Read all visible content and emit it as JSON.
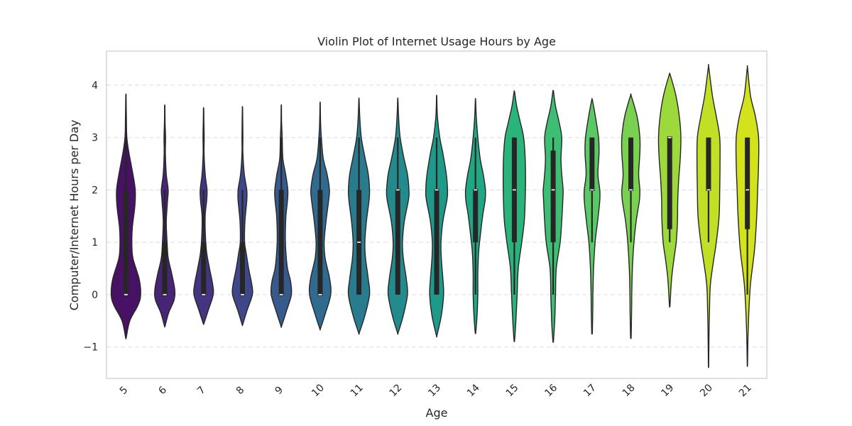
{
  "chart_data": {
    "type": "violin",
    "title": "Violin Plot of Internet Usage Hours by Age",
    "xlabel": "Age",
    "ylabel": "Computer/Internet Hours per Day",
    "ylim": [
      -1.6,
      4.65
    ],
    "yticks": [
      -1,
      0,
      1,
      2,
      3,
      4
    ],
    "grid": true,
    "palette": "viridis",
    "categories": [
      "5",
      "6",
      "7",
      "8",
      "9",
      "10",
      "11",
      "12",
      "13",
      "14",
      "15",
      "16",
      "17",
      "18",
      "19",
      "20",
      "21"
    ],
    "colors": [
      "#471164",
      "#482475",
      "#453581",
      "#3e4889",
      "#375a8c",
      "#306a8e",
      "#297b8e",
      "#238a8d",
      "#1f998a",
      "#20a784",
      "#2ab47c",
      "#3dbe72",
      "#5ac864",
      "#7ad151",
      "#9dd93b",
      "#c0df25",
      "#d2e21b"
    ],
    "stats": [
      {
        "min": 0,
        "q1": 0,
        "median": 0,
        "q3": 2,
        "max": 3.0,
        "kde_min": -0.82,
        "kde_max": 3.8
      },
      {
        "min": 0,
        "q1": 0,
        "median": 0,
        "q3": 1,
        "max": 2.0,
        "kde_min": -0.6,
        "kde_max": 3.6
      },
      {
        "min": 0,
        "q1": 0,
        "median": 0,
        "q3": 1,
        "max": 2.0,
        "kde_min": -0.55,
        "kde_max": 3.55
      },
      {
        "min": 0,
        "q1": 0,
        "median": 0,
        "q3": 1,
        "max": 2.0,
        "kde_min": -0.57,
        "kde_max": 3.57
      },
      {
        "min": 0,
        "q1": 0,
        "median": 0,
        "q3": 2,
        "max": 3.0,
        "kde_min": -0.6,
        "kde_max": 3.6
      },
      {
        "min": 0,
        "q1": 0,
        "median": 0,
        "q3": 2,
        "max": 3.0,
        "kde_min": -0.65,
        "kde_max": 3.65
      },
      {
        "min": 0,
        "q1": 0,
        "median": 1,
        "q3": 2,
        "max": 3.0,
        "kde_min": -0.73,
        "kde_max": 3.73
      },
      {
        "min": 0,
        "q1": 0,
        "median": 2,
        "q3": 2,
        "max": 3.0,
        "kde_min": -0.73,
        "kde_max": 3.73
      },
      {
        "min": 0,
        "q1": 0,
        "median": 2,
        "q3": 2,
        "max": 3.0,
        "kde_min": -0.78,
        "kde_max": 3.78
      },
      {
        "min": 0,
        "q1": 1,
        "median": 2,
        "q3": 2,
        "max": 3.0,
        "kde_min": -0.72,
        "kde_max": 3.72
      },
      {
        "min": 0,
        "q1": 1,
        "median": 2,
        "q3": 3,
        "max": 3.0,
        "kde_min": -0.87,
        "kde_max": 3.87
      },
      {
        "min": 0,
        "q1": 1,
        "median": 2,
        "q3": 2.75,
        "max": 3.0,
        "kde_min": -0.88,
        "kde_max": 3.88
      },
      {
        "min": 1,
        "q1": 2,
        "median": 2,
        "q3": 3,
        "max": 3.0,
        "kde_min": -0.72,
        "kde_max": 3.72
      },
      {
        "min": 1,
        "q1": 2,
        "median": 2,
        "q3": 3,
        "max": 3.0,
        "kde_min": -0.8,
        "kde_max": 3.8
      },
      {
        "min": 1,
        "q1": 1.25,
        "median": 3,
        "q3": 3,
        "max": 3.0,
        "kde_min": -0.2,
        "kde_max": 4.2
      },
      {
        "min": 1,
        "q1": 2,
        "median": 2,
        "q3": 3,
        "max": 3.0,
        "kde_min": -1.35,
        "kde_max": 4.35
      },
      {
        "min": 0,
        "q1": 1.25,
        "median": 2,
        "q3": 3,
        "max": 3.0,
        "kde_min": -1.33,
        "kde_max": 4.33
      }
    ],
    "densities": [
      [
        [
          -0.82,
          0.02
        ],
        [
          -0.5,
          0.25
        ],
        [
          -0.2,
          0.78
        ],
        [
          0.0,
          0.95
        ],
        [
          0.3,
          0.85
        ],
        [
          0.7,
          0.45
        ],
        [
          1.0,
          0.38
        ],
        [
          1.3,
          0.42
        ],
        [
          1.7,
          0.58
        ],
        [
          2.0,
          0.6
        ],
        [
          2.3,
          0.45
        ],
        [
          2.7,
          0.2
        ],
        [
          3.0,
          0.06
        ],
        [
          3.4,
          0.03
        ],
        [
          3.8,
          0.01
        ]
      ],
      [
        [
          -0.6,
          0.02
        ],
        [
          -0.35,
          0.25
        ],
        [
          -0.1,
          0.6
        ],
        [
          0.1,
          0.64
        ],
        [
          0.4,
          0.45
        ],
        [
          0.7,
          0.22
        ],
        [
          1.0,
          0.15
        ],
        [
          1.4,
          0.1
        ],
        [
          1.8,
          0.18
        ],
        [
          2.0,
          0.22
        ],
        [
          2.3,
          0.1
        ],
        [
          2.7,
          0.04
        ],
        [
          3.0,
          0.05
        ],
        [
          3.3,
          0.02
        ],
        [
          3.6,
          0.01
        ]
      ],
      [
        [
          -0.55,
          0.02
        ],
        [
          -0.3,
          0.3
        ],
        [
          0.0,
          0.62
        ],
        [
          0.2,
          0.58
        ],
        [
          0.5,
          0.38
        ],
        [
          0.8,
          0.2
        ],
        [
          1.1,
          0.12
        ],
        [
          1.5,
          0.1
        ],
        [
          1.8,
          0.2
        ],
        [
          2.0,
          0.22
        ],
        [
          2.3,
          0.1
        ],
        [
          2.7,
          0.03
        ],
        [
          3.0,
          0.04
        ],
        [
          3.3,
          0.02
        ],
        [
          3.55,
          0.01
        ]
      ],
      [
        [
          -0.57,
          0.02
        ],
        [
          -0.3,
          0.3
        ],
        [
          0.0,
          0.64
        ],
        [
          0.2,
          0.6
        ],
        [
          0.5,
          0.4
        ],
        [
          0.8,
          0.24
        ],
        [
          1.0,
          0.14
        ],
        [
          1.4,
          0.16
        ],
        [
          1.8,
          0.28
        ],
        [
          2.0,
          0.28
        ],
        [
          2.3,
          0.12
        ],
        [
          2.7,
          0.03
        ],
        [
          3.0,
          0.03
        ],
        [
          3.3,
          0.02
        ],
        [
          3.57,
          0.01
        ]
      ],
      [
        [
          -0.6,
          0.02
        ],
        [
          -0.3,
          0.35
        ],
        [
          0.0,
          0.65
        ],
        [
          0.25,
          0.6
        ],
        [
          0.5,
          0.4
        ],
        [
          0.8,
          0.3
        ],
        [
          1.1,
          0.26
        ],
        [
          1.5,
          0.3
        ],
        [
          1.8,
          0.4
        ],
        [
          2.0,
          0.42
        ],
        [
          2.3,
          0.28
        ],
        [
          2.6,
          0.1
        ],
        [
          3.0,
          0.06
        ],
        [
          3.3,
          0.02
        ],
        [
          3.6,
          0.01
        ]
      ],
      [
        [
          -0.65,
          0.02
        ],
        [
          -0.35,
          0.35
        ],
        [
          0.0,
          0.68
        ],
        [
          0.3,
          0.62
        ],
        [
          0.7,
          0.32
        ],
        [
          1.0,
          0.26
        ],
        [
          1.4,
          0.38
        ],
        [
          1.8,
          0.55
        ],
        [
          2.0,
          0.6
        ],
        [
          2.3,
          0.45
        ],
        [
          2.6,
          0.2
        ],
        [
          3.0,
          0.08
        ],
        [
          3.3,
          0.03
        ],
        [
          3.65,
          0.01
        ]
      ],
      [
        [
          -0.73,
          0.02
        ],
        [
          -0.4,
          0.38
        ],
        [
          0.0,
          0.68
        ],
        [
          0.3,
          0.6
        ],
        [
          0.7,
          0.42
        ],
        [
          1.0,
          0.38
        ],
        [
          1.4,
          0.48
        ],
        [
          1.8,
          0.65
        ],
        [
          2.0,
          0.68
        ],
        [
          2.3,
          0.6
        ],
        [
          2.6,
          0.4
        ],
        [
          3.0,
          0.15
        ],
        [
          3.4,
          0.05
        ],
        [
          3.73,
          0.01
        ]
      ],
      [
        [
          -0.73,
          0.02
        ],
        [
          -0.4,
          0.35
        ],
        [
          0.0,
          0.62
        ],
        [
          0.3,
          0.55
        ],
        [
          0.7,
          0.35
        ],
        [
          1.0,
          0.3
        ],
        [
          1.4,
          0.42
        ],
        [
          1.8,
          0.68
        ],
        [
          2.0,
          0.72
        ],
        [
          2.3,
          0.62
        ],
        [
          2.6,
          0.4
        ],
        [
          3.0,
          0.15
        ],
        [
          3.4,
          0.05
        ],
        [
          3.73,
          0.01
        ]
      ],
      [
        [
          -0.78,
          0.02
        ],
        [
          -0.4,
          0.3
        ],
        [
          0.0,
          0.45
        ],
        [
          0.3,
          0.4
        ],
        [
          0.7,
          0.3
        ],
        [
          1.0,
          0.28
        ],
        [
          1.4,
          0.4
        ],
        [
          1.8,
          0.66
        ],
        [
          2.0,
          0.7
        ],
        [
          2.3,
          0.62
        ],
        [
          2.7,
          0.4
        ],
        [
          3.0,
          0.2
        ],
        [
          3.4,
          0.05
        ],
        [
          3.78,
          0.01
        ]
      ],
      [
        [
          -0.72,
          0.02
        ],
        [
          -0.4,
          0.1
        ],
        [
          0.0,
          0.15
        ],
        [
          0.4,
          0.15
        ],
        [
          0.8,
          0.2
        ],
        [
          1.1,
          0.3
        ],
        [
          1.5,
          0.46
        ],
        [
          1.8,
          0.62
        ],
        [
          2.0,
          0.64
        ],
        [
          2.3,
          0.5
        ],
        [
          2.6,
          0.3
        ],
        [
          3.0,
          0.15
        ],
        [
          3.4,
          0.05
        ],
        [
          3.72,
          0.01
        ]
      ],
      [
        [
          -0.87,
          0.02
        ],
        [
          -0.5,
          0.1
        ],
        [
          0.0,
          0.18
        ],
        [
          0.5,
          0.25
        ],
        [
          1.0,
          0.48
        ],
        [
          1.4,
          0.64
        ],
        [
          1.8,
          0.7
        ],
        [
          2.2,
          0.72
        ],
        [
          2.6,
          0.7
        ],
        [
          3.0,
          0.6
        ],
        [
          3.3,
          0.38
        ],
        [
          3.6,
          0.15
        ],
        [
          3.87,
          0.02
        ]
      ],
      [
        [
          -0.88,
          0.02
        ],
        [
          -0.5,
          0.1
        ],
        [
          0.0,
          0.15
        ],
        [
          0.5,
          0.2
        ],
        [
          1.0,
          0.45
        ],
        [
          1.4,
          0.55
        ],
        [
          1.8,
          0.62
        ],
        [
          2.0,
          0.64
        ],
        [
          2.3,
          0.55
        ],
        [
          2.6,
          0.5
        ],
        [
          3.0,
          0.55
        ],
        [
          3.3,
          0.38
        ],
        [
          3.6,
          0.15
        ],
        [
          3.88,
          0.02
        ]
      ],
      [
        [
          -0.72,
          0.02
        ],
        [
          -0.3,
          0.05
        ],
        [
          0.0,
          0.06
        ],
        [
          0.5,
          0.1
        ],
        [
          1.0,
          0.2
        ],
        [
          1.4,
          0.36
        ],
        [
          1.8,
          0.5
        ],
        [
          2.0,
          0.5
        ],
        [
          2.3,
          0.38
        ],
        [
          2.7,
          0.45
        ],
        [
          3.0,
          0.42
        ],
        [
          3.4,
          0.22
        ],
        [
          3.72,
          0.02
        ]
      ],
      [
        [
          -0.8,
          0.02
        ],
        [
          -0.3,
          0.05
        ],
        [
          0.0,
          0.06
        ],
        [
          0.5,
          0.1
        ],
        [
          1.0,
          0.2
        ],
        [
          1.4,
          0.34
        ],
        [
          1.8,
          0.55
        ],
        [
          2.0,
          0.58
        ],
        [
          2.3,
          0.5
        ],
        [
          2.7,
          0.58
        ],
        [
          3.0,
          0.58
        ],
        [
          3.4,
          0.4
        ],
        [
          3.8,
          0.02
        ]
      ],
      [
        [
          -0.2,
          0.02
        ],
        [
          0.3,
          0.12
        ],
        [
          0.7,
          0.28
        ],
        [
          1.0,
          0.42
        ],
        [
          1.4,
          0.5
        ],
        [
          1.8,
          0.52
        ],
        [
          2.2,
          0.58
        ],
        [
          2.6,
          0.68
        ],
        [
          3.0,
          0.72
        ],
        [
          3.4,
          0.62
        ],
        [
          3.8,
          0.4
        ],
        [
          4.2,
          0.03
        ]
      ],
      [
        [
          -1.35,
          0.01
        ],
        [
          -0.8,
          0.03
        ],
        [
          -0.3,
          0.06
        ],
        [
          0.2,
          0.12
        ],
        [
          0.7,
          0.35
        ],
        [
          1.0,
          0.5
        ],
        [
          1.5,
          0.68
        ],
        [
          2.0,
          0.72
        ],
        [
          2.5,
          0.74
        ],
        [
          3.0,
          0.72
        ],
        [
          3.4,
          0.5
        ],
        [
          3.8,
          0.25
        ],
        [
          4.35,
          0.01
        ]
      ],
      [
        [
          -1.33,
          0.01
        ],
        [
          -0.8,
          0.04
        ],
        [
          -0.3,
          0.1
        ],
        [
          0.2,
          0.2
        ],
        [
          0.7,
          0.4
        ],
        [
          1.0,
          0.5
        ],
        [
          1.5,
          0.6
        ],
        [
          2.0,
          0.66
        ],
        [
          2.5,
          0.72
        ],
        [
          3.0,
          0.72
        ],
        [
          3.4,
          0.52
        ],
        [
          3.8,
          0.2
        ],
        [
          4.33,
          0.01
        ]
      ]
    ]
  }
}
